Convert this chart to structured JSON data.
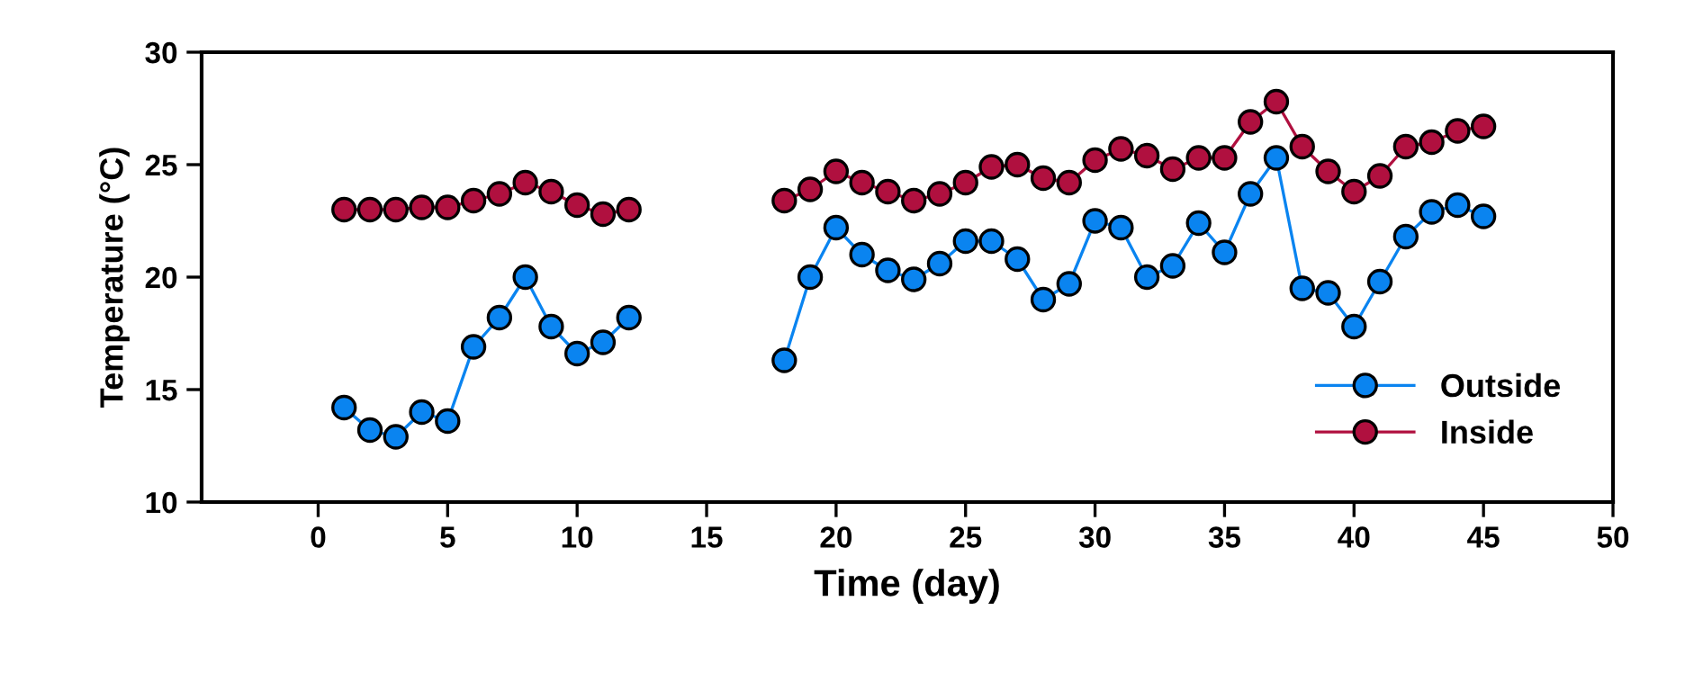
{
  "chart_data": {
    "type": "line",
    "xlabel": "Time (day)",
    "ylabel": "Temperature (°C)",
    "x": [
      1,
      2,
      3,
      4,
      5,
      6,
      7,
      8,
      9,
      10,
      11,
      12,
      13,
      14,
      15,
      16,
      17,
      18,
      19,
      20,
      21,
      22,
      23,
      24,
      25,
      26,
      27,
      28,
      29,
      30,
      31,
      32,
      33,
      34,
      35,
      36,
      37,
      38,
      39,
      40,
      41,
      42,
      43,
      44,
      45
    ],
    "series": [
      {
        "name": "Outside",
        "color": "#0a84f0",
        "values": [
          14.2,
          13.2,
          12.9,
          14.0,
          13.6,
          16.9,
          18.2,
          20.0,
          17.8,
          16.6,
          17.1,
          18.2,
          null,
          null,
          null,
          null,
          null,
          16.3,
          20.0,
          22.2,
          21.0,
          20.3,
          19.9,
          20.6,
          21.6,
          21.6,
          20.8,
          19.0,
          19.7,
          22.5,
          22.2,
          20.0,
          20.5,
          22.4,
          21.1,
          23.7,
          25.3,
          19.5,
          19.3,
          17.8,
          19.8,
          21.8,
          22.9,
          23.2,
          22.7
        ]
      },
      {
        "name": "Inside",
        "color": "#b0103f",
        "values": [
          23.0,
          23.0,
          23.0,
          23.1,
          23.1,
          23.4,
          23.7,
          24.2,
          23.8,
          23.2,
          22.8,
          23.0,
          null,
          null,
          null,
          null,
          null,
          23.4,
          23.9,
          24.7,
          24.2,
          23.8,
          23.4,
          23.7,
          24.2,
          24.9,
          25.0,
          24.4,
          24.2,
          25.2,
          25.7,
          25.4,
          24.8,
          25.3,
          25.3,
          26.9,
          27.8,
          25.8,
          24.7,
          23.8,
          24.5,
          25.8,
          26.0,
          26.5,
          26.7
        ]
      }
    ],
    "xlim": [
      -4.5,
      50
    ],
    "xticks": [
      0,
      5,
      10,
      15,
      20,
      25,
      30,
      35,
      40,
      45,
      50
    ],
    "ylim": [
      10,
      30
    ],
    "yticks": [
      10,
      15,
      20,
      25,
      30
    ],
    "grid": false,
    "legend": "bottom right",
    "marker": "circle",
    "line_style": "solid"
  }
}
